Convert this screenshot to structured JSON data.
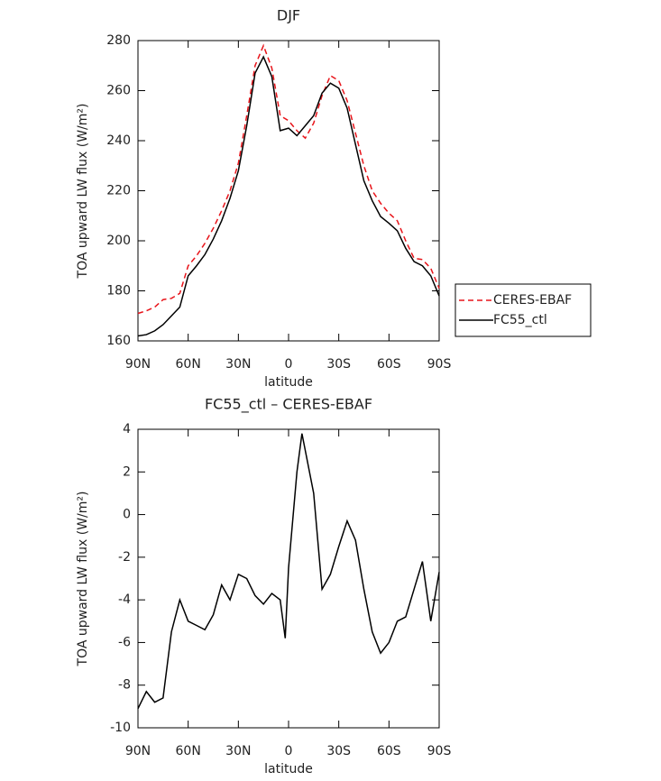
{
  "chart_data": [
    {
      "type": "line",
      "title": "DJF",
      "xlabel": "latitude",
      "ylabel": "TOA upward LW flux (W/m²)",
      "x": [
        90,
        85,
        80,
        75,
        70,
        65,
        60,
        55,
        50,
        45,
        40,
        35,
        30,
        25,
        20,
        15,
        10,
        5,
        0,
        -5,
        -10,
        -15,
        -20,
        -25,
        -30,
        -35,
        -40,
        -45,
        -50,
        -55,
        -60,
        -65,
        -70,
        -75,
        -80,
        -85,
        -90
      ],
      "series": [
        {
          "name": "CERES-EBAF",
          "color": "#e8141a",
          "dashed": true,
          "values": [
            171,
            172,
            173.5,
            176.5,
            177,
            179,
            190,
            194,
            199,
            205,
            212,
            220,
            231,
            250,
            270,
            278,
            269,
            250,
            248,
            244,
            241,
            247,
            258,
            266,
            264,
            256,
            243,
            230,
            220,
            215,
            211,
            208,
            200,
            193,
            192.5,
            189,
            181
          ]
        },
        {
          "name": "FC55_ctl",
          "color": "#000000",
          "dashed": false,
          "values": [
            162,
            162.5,
            164,
            166.5,
            170,
            173.5,
            186,
            190,
            194.5,
            200.7,
            208,
            217,
            228,
            246,
            267,
            273.5,
            265.6,
            244,
            245,
            242,
            246,
            250,
            259,
            263,
            261,
            253,
            238.5,
            224,
            216,
            209.7,
            207,
            204,
            197,
            191.7,
            190,
            186,
            178
          ]
        }
      ],
      "xlim": [
        90,
        -90
      ],
      "xticks": [
        {
          "value": 90,
          "label": "90N"
        },
        {
          "value": 60,
          "label": "60N"
        },
        {
          "value": 30,
          "label": "30N"
        },
        0,
        {
          "value": -30,
          "label": "30S"
        },
        {
          "value": -60,
          "label": "60S"
        },
        {
          "value": -90,
          "label": "90S"
        }
      ],
      "ylim": [
        160,
        280
      ],
      "yticks": [
        160,
        180,
        200,
        220,
        240,
        260,
        280
      ],
      "legend": "right"
    },
    {
      "type": "line",
      "title": "FC55_ctl – CERES-EBAF",
      "xlabel": "latitude",
      "ylabel": "TOA upward LW flux (W/m²)",
      "x": [
        90,
        85,
        80,
        75,
        70,
        65,
        60,
        55,
        50,
        45,
        40,
        35,
        30,
        25,
        20,
        15,
        10,
        5,
        2,
        0,
        -5,
        -8,
        -10,
        -15,
        -20,
        -25,
        -30,
        -35,
        -40,
        -45,
        -50,
        -55,
        -60,
        -65,
        -70,
        -75,
        -80,
        -85,
        -90
      ],
      "series": [
        {
          "color": "#000000",
          "dashed": false,
          "values": [
            -9.1,
            -8.3,
            -8.8,
            -8.6,
            -5.5,
            -4.0,
            -5.0,
            -5.2,
            -5.4,
            -4.7,
            -3.3,
            -4.0,
            -2.8,
            -3.0,
            -3.8,
            -4.2,
            -3.7,
            -4.0,
            -5.8,
            -2.5,
            2.0,
            3.8,
            3.0,
            1.0,
            -3.5,
            -2.8,
            -1.5,
            -0.3,
            -1.2,
            -3.5,
            -5.5,
            -6.5,
            -6.0,
            -5.0,
            -4.8,
            -3.5,
            -2.2,
            -5.0,
            -2.7
          ]
        }
      ],
      "xlim": [
        90,
        -90
      ],
      "xticks": [
        {
          "value": 90,
          "label": "90N"
        },
        {
          "value": 60,
          "label": "60N"
        },
        {
          "value": 30,
          "label": "30N"
        },
        0,
        {
          "value": -30,
          "label": "30S"
        },
        {
          "value": -60,
          "label": "60S"
        },
        {
          "value": -90,
          "label": "90S"
        }
      ],
      "ylim": [
        -10,
        4
      ],
      "yticks": [
        -10,
        -8,
        -6,
        -4,
        -2,
        0,
        2,
        4
      ]
    }
  ]
}
